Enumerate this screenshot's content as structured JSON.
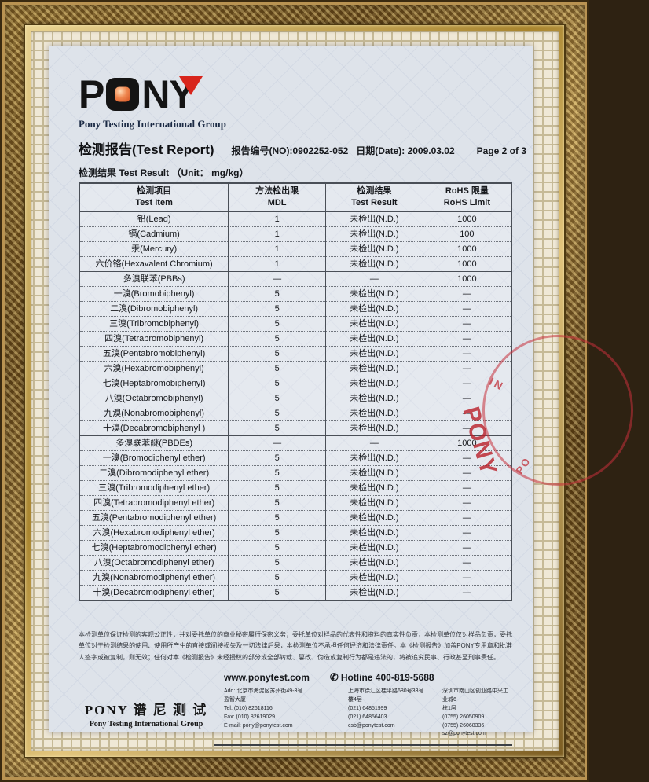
{
  "logo": {
    "letter_p": "P",
    "letter_n": "N",
    "letter_y": "Y",
    "o_icon": "orange-gradient-square-in-black-rounded-square",
    "y_accent": "red-triangle",
    "tagline": "Pony Testing International Group",
    "accent_red": "#d8251c",
    "accent_orange": "#ef8851"
  },
  "header": {
    "title": "检测报告(Test Report)",
    "report_no": "报告编号(NO):0902252-052",
    "date": "日期(Date): 2009.03.02",
    "page": "Page 2 of 3",
    "unit_line": "检测结果 Test Result （Unit： mg/kg）"
  },
  "table": {
    "headers": [
      {
        "cn": "检测项目",
        "en": "Test Item"
      },
      {
        "cn": "方法检出限",
        "en": "MDL"
      },
      {
        "cn": "检测结果",
        "en": "Test Result"
      },
      {
        "cn": "RoHS 限量",
        "en": "RoHS Limit"
      }
    ],
    "rows": [
      {
        "item": "铅(Lead)",
        "mdl": "1",
        "result": "未检出(N.D.)",
        "limit": "1000",
        "group": false
      },
      {
        "item": "镉(Cadmium)",
        "mdl": "1",
        "result": "未检出(N.D.)",
        "limit": "100",
        "group": false
      },
      {
        "item": "汞(Mercury)",
        "mdl": "1",
        "result": "未检出(N.D.)",
        "limit": "1000",
        "group": false
      },
      {
        "item": "六价铬(Hexavalent Chromium)",
        "mdl": "1",
        "result": "未检出(N.D.)",
        "limit": "1000",
        "group": false
      },
      {
        "item": "多溴联苯(PBBs)",
        "mdl": "—",
        "result": "—",
        "limit": "1000",
        "group": true
      },
      {
        "item": "一溴(Bromobiphenyl)",
        "mdl": "5",
        "result": "未检出(N.D.)",
        "limit": "—",
        "group": false
      },
      {
        "item": "二溴(Dibromobiphenyl)",
        "mdl": "5",
        "result": "未检出(N.D.)",
        "limit": "—",
        "group": false
      },
      {
        "item": "三溴(Tribromobiphenyl)",
        "mdl": "5",
        "result": "未检出(N.D.)",
        "limit": "—",
        "group": false
      },
      {
        "item": "四溴(Tetrabromobiphenyl)",
        "mdl": "5",
        "result": "未检出(N.D.)",
        "limit": "—",
        "group": false
      },
      {
        "item": "五溴(Pentabromobiphenyl)",
        "mdl": "5",
        "result": "未检出(N.D.)",
        "limit": "—",
        "group": false
      },
      {
        "item": "六溴(Hexabromobiphenyl)",
        "mdl": "5",
        "result": "未检出(N.D.)",
        "limit": "—",
        "group": false
      },
      {
        "item": "七溴(Heptabromobiphenyl)",
        "mdl": "5",
        "result": "未检出(N.D.)",
        "limit": "—",
        "group": false
      },
      {
        "item": "八溴(Octabromobiphenyl)",
        "mdl": "5",
        "result": "未检出(N.D.)",
        "limit": "—",
        "group": false
      },
      {
        "item": "九溴(Nonabromobiphenyl)",
        "mdl": "5",
        "result": "未检出(N.D.)",
        "limit": "—",
        "group": false
      },
      {
        "item": "十溴(Decabromobiphenyl )",
        "mdl": "5",
        "result": "未检出(N.D.)",
        "limit": "—",
        "group": false
      },
      {
        "item": "多溴联苯醚(PBDEs)",
        "mdl": "—",
        "result": "—",
        "limit": "1000",
        "group": true
      },
      {
        "item": "一溴(Bromodiphenyl ether)",
        "mdl": "5",
        "result": "未检出(N.D.)",
        "limit": "—",
        "group": false
      },
      {
        "item": "二溴(Dibromodiphenyl ether)",
        "mdl": "5",
        "result": "未检出(N.D.)",
        "limit": "—",
        "group": false
      },
      {
        "item": "三溴(Tribromodiphenyl ether)",
        "mdl": "5",
        "result": "未检出(N.D.)",
        "limit": "—",
        "group": false
      },
      {
        "item": "四溴(Tetrabromodiphenyl ether)",
        "mdl": "5",
        "result": "未检出(N.D.)",
        "limit": "—",
        "group": false
      },
      {
        "item": "五溴(Pentabromodiphenyl ether)",
        "mdl": "5",
        "result": "未检出(N.D.)",
        "limit": "—",
        "group": false
      },
      {
        "item": "六溴(Hexabromodiphenyl ether)",
        "mdl": "5",
        "result": "未检出(N.D.)",
        "limit": "—",
        "group": false
      },
      {
        "item": "七溴(Heptabromodiphenyl ether)",
        "mdl": "5",
        "result": "未检出(N.D.)",
        "limit": "—",
        "group": false
      },
      {
        "item": "八溴(Octabromodiphenyl ether)",
        "mdl": "5",
        "result": "未检出(N.D.)",
        "limit": "—",
        "group": false
      },
      {
        "item": "九溴(Nonabromodiphenyl ether)",
        "mdl": "5",
        "result": "未检出(N.D.)",
        "limit": "—",
        "group": false
      },
      {
        "item": "十溴(Decabromodiphenyl ether)",
        "mdl": "5",
        "result": "未检出(N.D.)",
        "limit": "—",
        "group": false
      }
    ]
  },
  "stamp": {
    "arc_top": "IN",
    "center": "PONY",
    "arc_bottom": "PO",
    "color": "#c22a33"
  },
  "disclaimer": "本检测单位保证检测的客观公正性，并对委托单位的商业秘密履行保密义务；委托单位对样品的代表性和资料的真实性负责，本检测单位仅对样品负责，委托单位对于检测结果的使用、使用所产生的直接或间接损失及一切法律后果，本检测单位不承担任何经济和法律责任。本《检测报告》加盖PONY专用章和批准人签字或被复制，则无效；任何对本《检测报告》未经授权的部分或全部转载、篡改、伪造或复制行为都是违法的，将被追究民事、行政甚至刑事责任。",
  "footer": {
    "brand_cn": "PONY 谱 尼 测 试",
    "brand_en": "Pony Testing International Group",
    "website": "www.ponytest.com",
    "hotline_icon": "✆",
    "hotline": "Hotline 400-819-5688",
    "contact_cols": [
      "Add:   北京市海淀区苏州街49-3号\n盈智大厦\nTel:   (010) 82618116\nFax:  (010) 82619029\nE-mail: pony@ponytest.com",
      "上海市徐汇区桂平路680号33号\n楼4层\n(021) 64851999\n(021) 64856403\ncsb@ponytest.com",
      "深圳市南山区创业路中兴工业城6\n栋1层\n(0755) 26050909\n(0755) 26068336\nsz@ponytest.com"
    ]
  }
}
